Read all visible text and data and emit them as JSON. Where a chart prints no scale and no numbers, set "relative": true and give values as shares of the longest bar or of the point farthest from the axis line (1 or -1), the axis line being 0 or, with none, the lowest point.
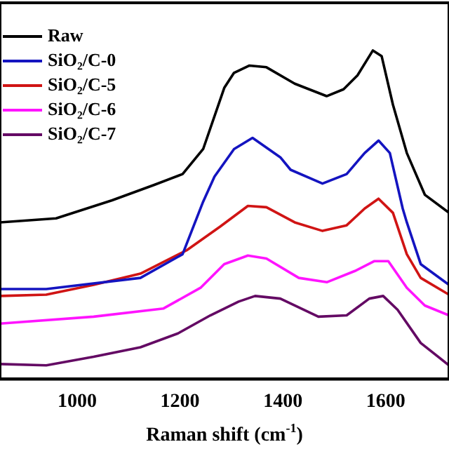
{
  "chart_data": {
    "type": "line",
    "relative": true,
    "xlabel": "Raman shift (cm$^{-1}$)",
    "xlim": [
      850,
      1723
    ],
    "xticks": [
      1000,
      1200,
      1400,
      1600
    ],
    "legend": "top left",
    "marker": "none",
    "line_style": "solid",
    "grid": false,
    "series": [
      {
        "name": "Raw",
        "color": "#000000",
        "x": [
          850,
          959,
          1068,
          1150,
          1205,
          1245,
          1286,
          1305,
          1335,
          1368,
          1423,
          1485,
          1518,
          1545,
          1575,
          1592,
          1614,
          1641,
          1676,
          1723
        ],
        "values": [
          0.477,
          0.489,
          0.544,
          0.591,
          0.624,
          0.7,
          0.886,
          0.932,
          0.954,
          0.949,
          0.899,
          0.861,
          0.882,
          0.924,
          1.0,
          0.983,
          0.835,
          0.688,
          0.561,
          0.506
        ]
      },
      {
        "name": "SiO₂/C-0",
        "color": "#1414c0",
        "x": [
          850,
          940,
          1123,
          1205,
          1245,
          1267,
          1305,
          1341,
          1395,
          1415,
          1477,
          1524,
          1559,
          1586,
          1608,
          1633,
          1641,
          1668,
          1723
        ],
        "values": [
          0.274,
          0.274,
          0.308,
          0.38,
          0.54,
          0.616,
          0.7,
          0.734,
          0.675,
          0.637,
          0.595,
          0.624,
          0.688,
          0.726,
          0.688,
          0.519,
          0.477,
          0.35,
          0.287
        ]
      },
      {
        "name": "SiO₂/C-5",
        "color": "#d01414",
        "x": [
          850,
          940,
          1032,
          1123,
          1213,
          1278,
          1332,
          1368,
          1423,
          1477,
          1524,
          1559,
          1586,
          1614,
          1641,
          1668,
          1723
        ],
        "values": [
          0.253,
          0.257,
          0.287,
          0.321,
          0.392,
          0.464,
          0.527,
          0.523,
          0.477,
          0.451,
          0.468,
          0.519,
          0.549,
          0.506,
          0.38,
          0.308,
          0.257
        ]
      },
      {
        "name": "SiO₂/C-6",
        "color": "#ff14ff",
        "x": [
          850,
          1032,
          1168,
          1240,
          1286,
          1332,
          1368,
          1431,
          1486,
          1540,
          1578,
          1605,
          1641,
          1676,
          1723
        ],
        "values": [
          0.169,
          0.19,
          0.215,
          0.278,
          0.35,
          0.376,
          0.367,
          0.308,
          0.295,
          0.329,
          0.359,
          0.359,
          0.278,
          0.224,
          0.194
        ]
      },
      {
        "name": "SiO₂/C-7",
        "color": "#640a64",
        "x": [
          850,
          940,
          1032,
          1123,
          1196,
          1259,
          1314,
          1346,
          1395,
          1469,
          1524,
          1568,
          1595,
          1623,
          1668,
          1723
        ],
        "values": [
          0.046,
          0.042,
          0.068,
          0.097,
          0.139,
          0.194,
          0.236,
          0.253,
          0.245,
          0.19,
          0.194,
          0.245,
          0.253,
          0.211,
          0.11,
          0.042
        ]
      }
    ]
  }
}
